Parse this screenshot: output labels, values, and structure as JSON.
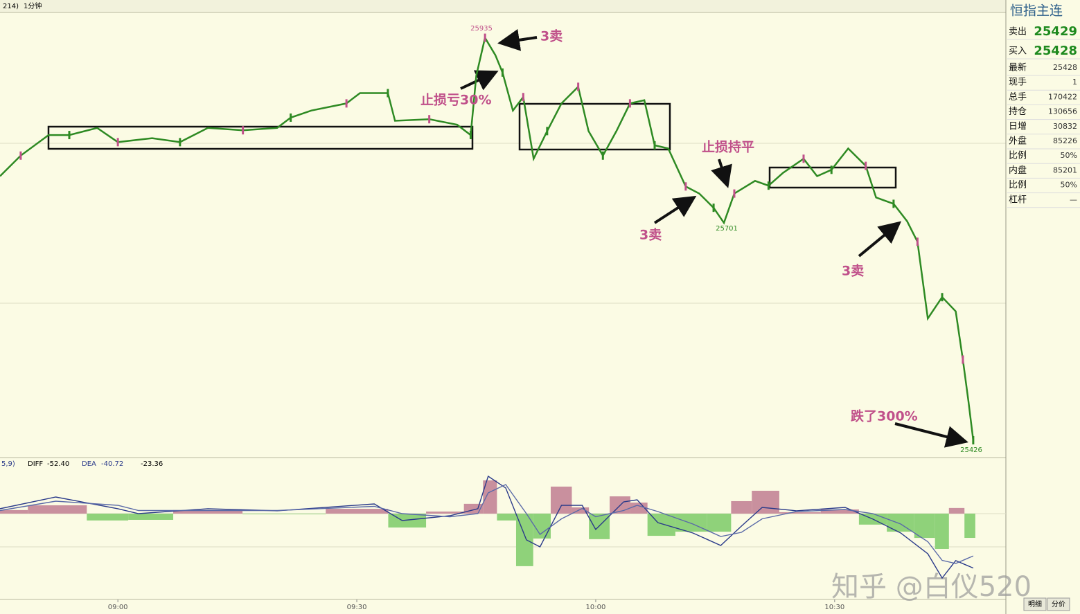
{
  "toolbar": {
    "period_tab": "214)",
    "interval": "1分钟"
  },
  "quote_panel": {
    "title": "恒指主连",
    "rows": [
      [
        "卖出",
        25429
      ],
      [
        "买入",
        25428
      ],
      [
        "最新",
        25428
      ],
      [
        "现手",
        1
      ],
      [
        "总手",
        170422
      ],
      [
        "持仓",
        130656
      ],
      [
        "日增",
        30832
      ],
      [
        "外盘",
        85226
      ],
      [
        "比例",
        "50%"
      ],
      [
        "内盘",
        85201
      ],
      [
        "比例",
        "50%"
      ],
      [
        "杠杆",
        "—"
      ]
    ]
  },
  "bottom_tabs": [
    "明细",
    "分价"
  ],
  "watermark": "知乎 @白仪520",
  "chart_data": [
    {
      "type": "line",
      "color": "#2e8a23",
      "x": [
        -14.8,
        -12.2,
        -8.7,
        -6.1,
        -2.6,
        0,
        4.3,
        7.8,
        11.3,
        15.7,
        20,
        21.7,
        24.3,
        28.7,
        30.4,
        33.9,
        34.8,
        39.1,
        42.6,
        44.3,
        45,
        46.1,
        47.4,
        48.3,
        49.6,
        50.9,
        52.2,
        53.9,
        55.7,
        57.8,
        59.1,
        60.9,
        62.6,
        64.3,
        66.1,
        67.4,
        69.1,
        71.3,
        73,
        74.8,
        76.1,
        77.4,
        80,
        81.7,
        83.5,
        86.1,
        87.8,
        89.6,
        91.7,
        93.9,
        95.2,
        97.4,
        99.1,
        100.4,
        101.7,
        103.5,
        105.2,
        106.1,
        106.8,
        107.4
      ],
      "values": [
        25760,
        25786,
        25812,
        25812,
        25821,
        25803,
        25808,
        25803,
        25821,
        25818,
        25821,
        25834,
        25843,
        25852,
        25865,
        25865,
        25830,
        25832,
        25825,
        25812,
        25887,
        25935,
        25913,
        25891,
        25843,
        25860,
        25782,
        25817,
        25852,
        25873,
        25817,
        25786,
        25817,
        25852,
        25856,
        25799,
        25795,
        25747,
        25738,
        25720,
        25701,
        25738,
        25754,
        25748,
        25764,
        25782,
        25760,
        25768,
        25795,
        25773,
        25733,
        25725,
        25703,
        25677,
        25580,
        25607,
        25589,
        25528,
        25475,
        25426
      ],
      "xlim": [
        -14.8,
        111.5
      ],
      "ylim": [
        25405,
        25967
      ],
      "xticks": [
        {
          "value": 0,
          "label": "09:00"
        },
        {
          "value": 30,
          "label": "09:30"
        },
        {
          "value": 60,
          "label": "10:00"
        },
        {
          "value": 90,
          "label": "10:30"
        }
      ],
      "annotations": [
        {
          "text": "25935"
        },
        {
          "text": "3卖"
        },
        {
          "text": "止损亏30%"
        },
        {
          "text": "止损持平"
        },
        {
          "text": "3卖"
        },
        {
          "text": "25701"
        },
        {
          "text": "3卖"
        },
        {
          "text": "跌了300%"
        },
        {
          "text": "25426"
        }
      ]
    },
    {
      "type": "macd",
      "params": "5,9)",
      "x": [
        -14.8,
        -7.8,
        0,
        2.6,
        11.3,
        20,
        32.2,
        35.7,
        41.7,
        45.2,
        46.5,
        48.7,
        51.3,
        53,
        55.7,
        58.3,
        60,
        63.5,
        65.2,
        67.8,
        72.2,
        75.7,
        78.3,
        80.9,
        85.2,
        91.3,
        94.8,
        98.3,
        101.7,
        103.5,
        105.2,
        107.4
      ],
      "xlim": [
        -14.8,
        111.5
      ],
      "ylim": [
        -82,
        51.3
      ],
      "series": [
        {
          "name": "DIFF",
          "value_label": "-52.40",
          "color": "#2a3a8a",
          "values": [
            4.7,
            16,
            4.7,
            0,
            4.7,
            2.7,
            9.3,
            -6.7,
            -2,
            4.7,
            36,
            24.7,
            -25.3,
            -32,
            8,
            8,
            -15.3,
            11.3,
            13.3,
            -8.7,
            -18.7,
            -30.7,
            -12,
            6,
            2.7,
            6,
            -5.3,
            -18.7,
            -38.7,
            -62,
            -45.3,
            -52.4
          ]
        },
        {
          "name": "DEA",
          "value_label": "-40.72",
          "color": "#5a6aa8",
          "values": [
            3,
            12,
            8,
            3,
            3,
            3,
            7,
            0,
            -3,
            0,
            20,
            28,
            0,
            -20,
            -5,
            5,
            -3,
            3,
            8,
            2,
            -10,
            -22,
            -18,
            -5,
            2,
            4,
            0,
            -10,
            -27,
            -45,
            -48,
            -40.72
          ]
        },
        {
          "value_label": "-23.36",
          "colors": {
            "up": "#c9909e",
            "down": "#8fd27a"
          },
          "values": [
            3.4,
            8,
            -6.6,
            -6,
            3.4,
            -0.6,
            4.6,
            -13.4,
            2,
            9.4,
            32,
            -6.6,
            -50.6,
            -24,
            26,
            6,
            -24.6,
            16.6,
            10.6,
            -21.4,
            -17.4,
            -17.4,
            12,
            22,
            1.4,
            4,
            -10.6,
            -17.4,
            -23.4,
            -34,
            5.4,
            -23.36
          ]
        }
      ]
    }
  ]
}
